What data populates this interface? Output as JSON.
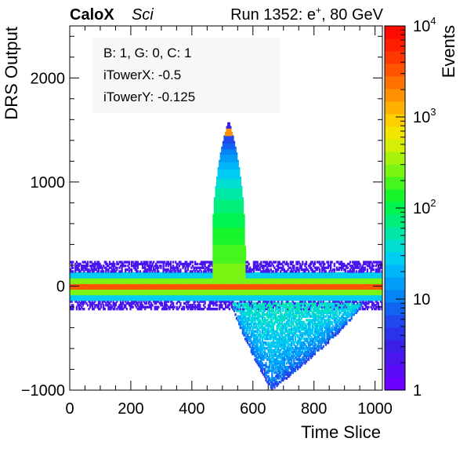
{
  "header": {
    "brand_bold": "CaloX",
    "brand_italic": "Sci",
    "run_prefix": "Run 1352: e",
    "run_sup": "+",
    "run_suffix": ", 80 GeV"
  },
  "info_box": {
    "line1": "B: 1, G: 0, C: 1",
    "line2": "iTowerX: -0.5",
    "line3": "iTowerY: -0.125"
  },
  "colorbar": {
    "label": "Events",
    "tick_labels": [
      "1",
      "10",
      "10",
      "10",
      "10"
    ],
    "tick_exponents": [
      "",
      "",
      "2",
      "3",
      "4"
    ],
    "colors": [
      "#6b00ff",
      "#5a0af5",
      "#4b15ee",
      "#3a1fe6",
      "#2a33e8",
      "#1f49ee",
      "#1064f2",
      "#0584f5",
      "#009ef8",
      "#00b6fa",
      "#00cdf2",
      "#00dfcf",
      "#00e8a6",
      "#00ef7a",
      "#00f450",
      "#18f52c",
      "#46f51e",
      "#7af514",
      "#a8f30c",
      "#d4ee06",
      "#f2e600",
      "#ffcf00",
      "#ffb000",
      "#ff9100",
      "#ff7200",
      "#ff5400",
      "#ff3800",
      "#ff1e00",
      "#ff0a00"
    ]
  },
  "chart_data": {
    "type": "heatmap",
    "title": "",
    "xlabel": "Time Slice",
    "ylabel": "DRS Output",
    "xlim": [
      0,
      1024
    ],
    "ylim": [
      -1000,
      2500
    ],
    "x_ticks": [
      "0",
      "200",
      "400",
      "600",
      "800",
      "1000"
    ],
    "y_ticks": [
      "-1000",
      "0",
      "1000",
      "2000"
    ],
    "z_label": "Events",
    "z_scale": "log",
    "z_range": [
      1,
      10000
    ],
    "bands": [
      {
        "feature": "pedestal_core",
        "x_range": [
          0,
          1024
        ],
        "y_range": [
          -30,
          30
        ],
        "events": 3000
      },
      {
        "feature": "pedestal_inner",
        "x_range": [
          0,
          1024
        ],
        "y_range": [
          -80,
          80
        ],
        "events": 300
      },
      {
        "feature": "pedestal_outer",
        "x_range": [
          0,
          1024
        ],
        "y_range": [
          -140,
          140
        ],
        "events": 30
      },
      {
        "feature": "pedestal_tail",
        "x_range": [
          0,
          1024
        ],
        "y_range": [
          -230,
          240
        ],
        "events": 2
      }
    ],
    "pulse": {
      "x_start": 470,
      "x_peak": 510,
      "x_end": 580,
      "y_peak": 1600,
      "peak_events": 2000
    },
    "undershoot": {
      "x_start": 530,
      "x_min": 660,
      "x_end": 960,
      "y_min": -1000,
      "events": 5
    }
  }
}
